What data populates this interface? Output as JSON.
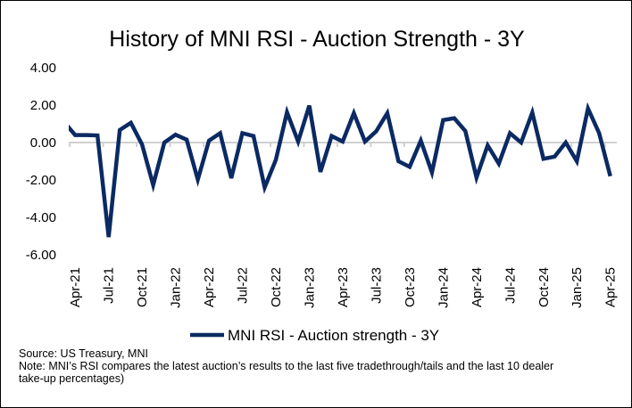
{
  "chart_data": {
    "type": "line",
    "title": "History of MNI RSI - Auction Strength - 3Y",
    "xlabel": "",
    "ylabel": "",
    "ylim": [
      -6,
      4
    ],
    "yticks": [
      "4.00",
      "2.00",
      "0.00",
      "-2.00",
      "-4.00",
      "-6.00"
    ],
    "ytick_values": [
      4,
      2,
      0,
      -2,
      -4,
      -6
    ],
    "grid": "zero line only",
    "legend_placement": "bottom",
    "x": [
      "Mar-21",
      "Apr-21",
      "May-21",
      "Jun-21",
      "Jul-21",
      "Aug-21",
      "Sep-21",
      "Oct-21",
      "Nov-21",
      "Dec-21",
      "Jan-22",
      "Feb-22",
      "Mar-22",
      "Apr-22",
      "May-22",
      "Jun-22",
      "Jul-22",
      "Aug-22",
      "Sep-22",
      "Oct-22",
      "Nov-22",
      "Dec-22",
      "Jan-23",
      "Feb-23",
      "Mar-23",
      "Apr-23",
      "May-23",
      "Jun-23",
      "Jul-23",
      "Aug-23",
      "Sep-23",
      "Oct-23",
      "Nov-23",
      "Dec-23",
      "Jan-24",
      "Feb-24",
      "Mar-24",
      "Apr-24",
      "May-24",
      "Jun-24",
      "Jul-24",
      "Aug-24",
      "Sep-24",
      "Oct-24",
      "Nov-24",
      "Dec-24",
      "Jan-25",
      "Feb-25",
      "Mar-25",
      "Apr-25"
    ],
    "xtick_labels": [
      "Apr-21",
      "Jul-21",
      "Oct-21",
      "Jan-22",
      "Apr-22",
      "Jul-22",
      "Oct-22",
      "Jan-23",
      "Apr-23",
      "Jul-23",
      "Oct-23",
      "Jan-24",
      "Apr-24",
      "Jul-24",
      "Oct-24",
      "Jan-25",
      "Apr-25"
    ],
    "series": [
      {
        "name": "MNI RSI - Auction strength - 3Y",
        "color": "#0b2a63",
        "values": [
          1.1,
          0.4,
          0.4,
          0.38,
          -5.05,
          0.67,
          1.05,
          -0.1,
          -2.27,
          0.0,
          0.42,
          0.15,
          -1.98,
          0.1,
          0.5,
          -1.9,
          0.5,
          0.35,
          -2.4,
          -0.93,
          1.62,
          0.05,
          1.97,
          -1.57,
          0.35,
          0.05,
          1.57,
          0.05,
          0.6,
          1.57,
          -1.0,
          -1.3,
          0.1,
          -1.6,
          1.2,
          1.3,
          0.62,
          -1.87,
          -0.15,
          -1.13,
          0.5,
          0.0,
          1.6,
          -0.87,
          -0.75,
          0.0,
          -1.0,
          1.82,
          0.5,
          -1.8
        ]
      }
    ]
  },
  "footer": {
    "source": "Source: US Treasury, MNI",
    "note_line1": "Note: MNI’s RSI compares the latest auction’s results to the last five tradethrough/tails and the last 10 dealer",
    "note_line2": "take-up percentages)"
  }
}
